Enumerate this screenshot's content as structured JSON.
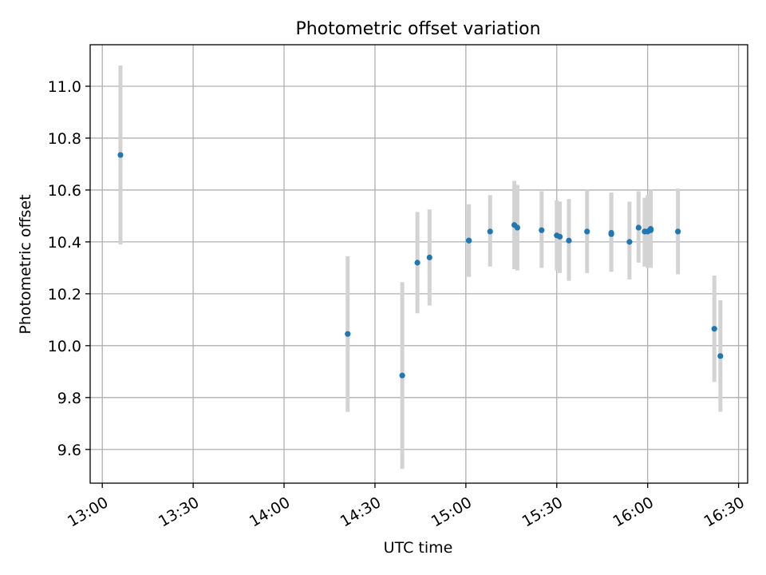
{
  "chart_data": {
    "type": "scatter",
    "title": "Photometric offset variation",
    "xlabel": "UTC time",
    "ylabel": "Photometric offset",
    "x_ticks": [
      "13:00",
      "13:30",
      "14:00",
      "14:30",
      "15:00",
      "15:30",
      "16:00",
      "16:30"
    ],
    "y_ticks": [
      "9.6",
      "9.8",
      "10.0",
      "10.2",
      "10.4",
      "10.6",
      "10.8",
      "11.0"
    ],
    "xlim": [
      "12:56",
      "16:33"
    ],
    "ylim": [
      9.47,
      11.16
    ],
    "grid": true,
    "marker_color": "#1f77b4",
    "errorbar_color": "#d3d3d3",
    "series": [
      {
        "points": [
          {
            "t": "13:06",
            "y": 10.735,
            "lo": 10.39,
            "hi": 11.08
          },
          {
            "t": "14:21",
            "y": 10.045,
            "lo": 9.745,
            "hi": 10.345
          },
          {
            "t": "14:39",
            "y": 9.885,
            "lo": 9.525,
            "hi": 10.245
          },
          {
            "t": "14:44",
            "y": 10.32,
            "lo": 10.125,
            "hi": 10.515
          },
          {
            "t": "14:48",
            "y": 10.34,
            "lo": 10.155,
            "hi": 10.525
          },
          {
            "t": "15:01",
            "y": 10.405,
            "lo": 10.27,
            "hi": 10.54
          },
          {
            "t": "15:01",
            "y": 10.405,
            "lo": 10.265,
            "hi": 10.545
          },
          {
            "t": "15:08",
            "y": 10.44,
            "lo": 10.305,
            "hi": 10.58
          },
          {
            "t": "15:16",
            "y": 10.465,
            "lo": 10.295,
            "hi": 10.635
          },
          {
            "t": "15:17",
            "y": 10.455,
            "lo": 10.29,
            "hi": 10.62
          },
          {
            "t": "15:25",
            "y": 10.445,
            "lo": 10.3,
            "hi": 10.595
          },
          {
            "t": "15:30",
            "y": 10.425,
            "lo": 10.29,
            "hi": 10.56
          },
          {
            "t": "15:31",
            "y": 10.42,
            "lo": 10.28,
            "hi": 10.555
          },
          {
            "t": "15:34",
            "y": 10.405,
            "lo": 10.25,
            "hi": 10.565
          },
          {
            "t": "15:40",
            "y": 10.44,
            "lo": 10.28,
            "hi": 10.6
          },
          {
            "t": "15:48",
            "y": 10.435,
            "lo": 10.285,
            "hi": 10.59
          },
          {
            "t": "15:48",
            "y": 10.43,
            "lo": 10.285,
            "hi": 10.58
          },
          {
            "t": "15:54",
            "y": 10.4,
            "lo": 10.255,
            "hi": 10.555
          },
          {
            "t": "15:57",
            "y": 10.455,
            "lo": 10.32,
            "hi": 10.595
          },
          {
            "t": "15:59",
            "y": 10.44,
            "lo": 10.305,
            "hi": 10.57
          },
          {
            "t": "16:00",
            "y": 10.44,
            "lo": 10.3,
            "hi": 10.58
          },
          {
            "t": "16:01",
            "y": 10.445,
            "lo": 10.305,
            "hi": 10.6
          },
          {
            "t": "16:01",
            "y": 10.45,
            "lo": 10.3,
            "hi": 10.6
          },
          {
            "t": "16:10",
            "y": 10.44,
            "lo": 10.275,
            "hi": 10.605
          },
          {
            "t": "16:22",
            "y": 10.065,
            "lo": 9.86,
            "hi": 10.27
          },
          {
            "t": "16:24",
            "y": 9.96,
            "lo": 9.745,
            "hi": 10.175
          }
        ]
      }
    ]
  }
}
